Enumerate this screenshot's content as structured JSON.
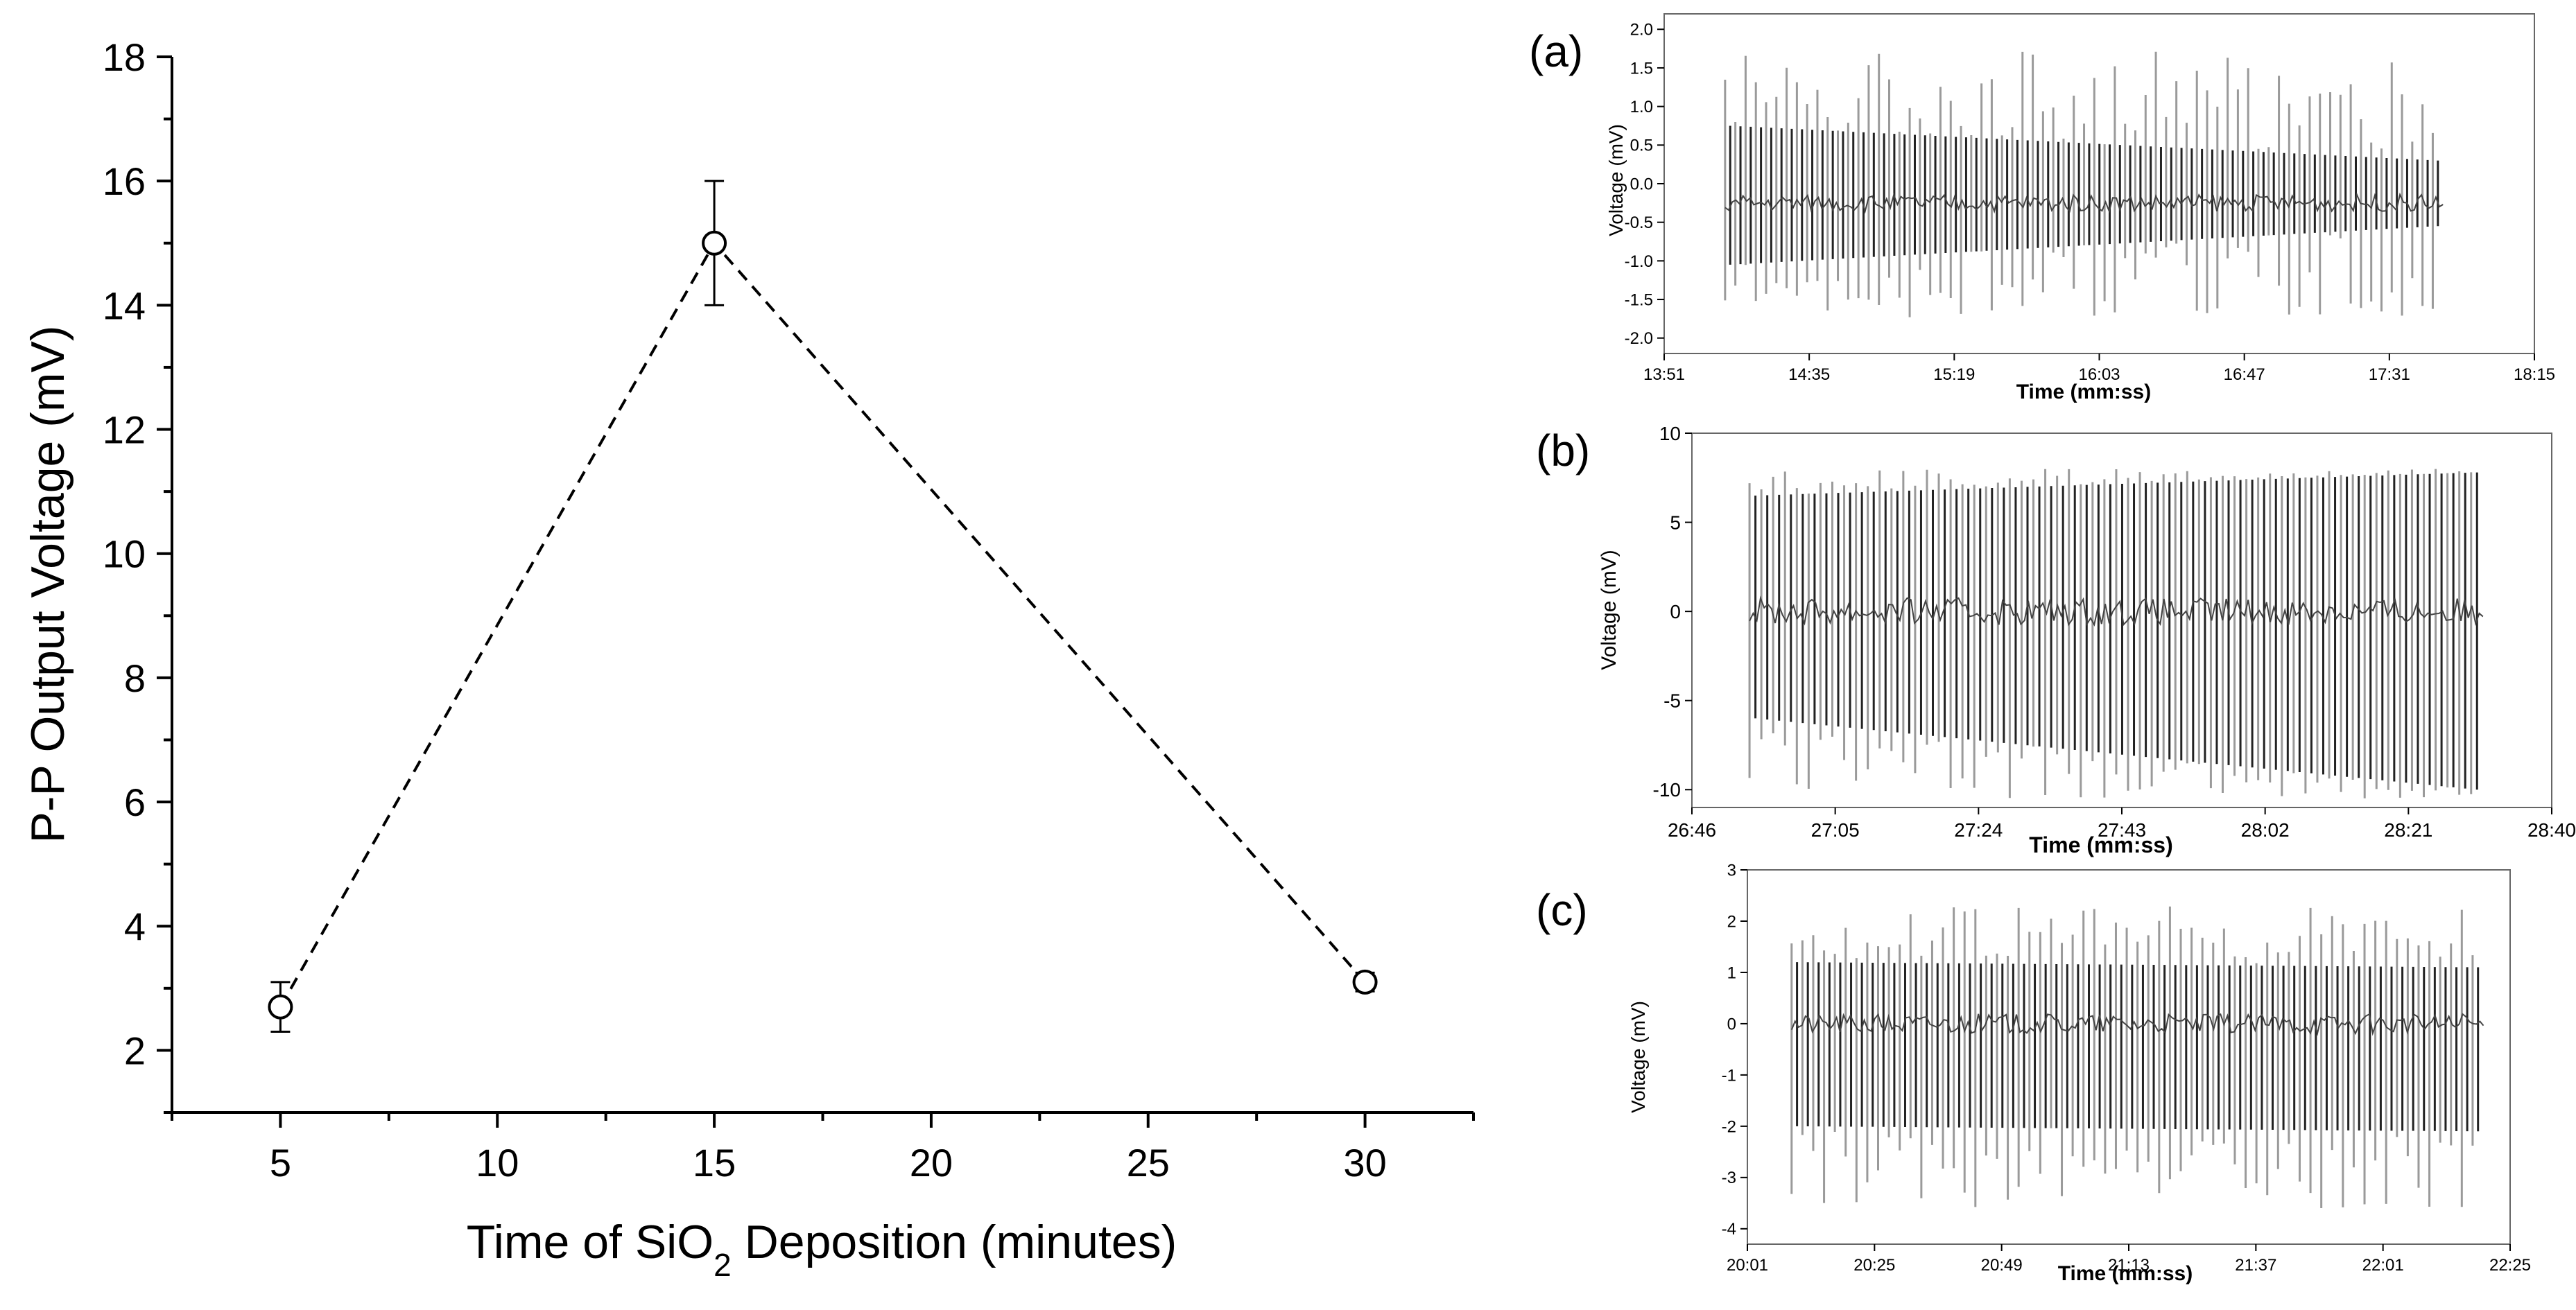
{
  "chart_data": [
    {
      "type": "scatter",
      "panel": "main",
      "title": "",
      "xlabel_prefix": "Time of SiO",
      "xlabel_sub": "2",
      "xlabel_suffix": " Deposition (minutes)",
      "ylabel": "P-P Output Voltage (mV)",
      "xlim": [
        2.5,
        32.5
      ],
      "ylim": [
        1,
        18
      ],
      "x_ticks": [
        5,
        10,
        15,
        20,
        25,
        30
      ],
      "x_tick_labels": [
        "5",
        "10",
        "15",
        "20",
        "25",
        "30"
      ],
      "y_ticks": [
        2,
        4,
        6,
        8,
        10,
        12,
        14,
        16,
        18
      ],
      "y_tick_labels": [
        "2",
        "4",
        "6",
        "8",
        "10",
        "12",
        "14",
        "16",
        "18"
      ],
      "line_style": "dashed",
      "points": [
        {
          "x": 5,
          "y": 2.7,
          "err": 0.4
        },
        {
          "x": 15,
          "y": 15.0,
          "err": 1.0
        },
        {
          "x": 30,
          "y": 3.1,
          "err": 0.15
        }
      ]
    },
    {
      "type": "line",
      "panel": "(a)",
      "panel_label": "(a)",
      "xlabel": "Time (mm:ss)",
      "ylabel": "Voltage (mV)",
      "ylim": [
        -2.2,
        2.2
      ],
      "y_ticks": [
        -2.0,
        -1.5,
        -1.0,
        -0.5,
        0.0,
        0.5,
        1.0,
        1.5,
        2.0
      ],
      "y_tick_labels": [
        "-2.0",
        "-1.5",
        "-1.0",
        "-0.5",
        "0.0",
        "0.5",
        "1.0",
        "1.5",
        "2.0"
      ],
      "x_tick_labels": [
        "13:51",
        "14:35",
        "15:19",
        "16:03",
        "16:47",
        "17:31",
        "18:15"
      ],
      "signal": {
        "start_frac": 0.07,
        "end_frac": 0.895,
        "cycles": 70,
        "upper_start": 0.75,
        "upper_end": 0.3,
        "lower_start": -1.05,
        "lower_end": -0.55,
        "spike_max": 1.75,
        "spike_min": -1.75,
        "mid": -0.25
      }
    },
    {
      "type": "line",
      "panel": "(b)",
      "panel_label": "(b)",
      "xlabel": "Time (mm:ss)",
      "ylabel": "Voltage (mV)",
      "ylim": [
        -11,
        10
      ],
      "y_ticks": [
        -10,
        -5,
        0,
        5,
        10
      ],
      "y_tick_labels": [
        "-10",
        "-5",
        "0",
        "5",
        "10"
      ],
      "x_tick_labels": [
        "26:46",
        "27:05",
        "27:24",
        "27:43",
        "28:02",
        "28:21",
        "28:40"
      ],
      "signal": {
        "start_frac": 0.067,
        "end_frac": 0.92,
        "cycles": 62,
        "upper_start": 6.5,
        "upper_end": 7.8,
        "lower_start": -6.0,
        "lower_end": -10.0,
        "spike_max": 8.0,
        "spike_min": -10.5,
        "mid": 0.0
      }
    },
    {
      "type": "line",
      "panel": "(c)",
      "panel_label": "(c)",
      "xlabel": "Time (mm:ss)",
      "ylabel": "Voltage (mV)",
      "ylim": [
        -4.3,
        3
      ],
      "y_ticks": [
        -4,
        -3,
        -2,
        -1,
        0,
        1,
        2,
        3
      ],
      "y_tick_labels": [
        "-4",
        "-3",
        "-2",
        "-1",
        "0",
        "1",
        "2",
        "3"
      ],
      "x_tick_labels": [
        "20:01",
        "20:25",
        "20:49",
        "21:13",
        "21:37",
        "22:01",
        "22:25"
      ],
      "signal": {
        "start_frac": 0.058,
        "end_frac": 0.965,
        "cycles": 64,
        "upper_start": 1.2,
        "upper_end": 1.1,
        "lower_start": -2.0,
        "lower_end": -2.1,
        "spike_max": 2.3,
        "spike_min": -3.6,
        "mid": 0.0
      }
    }
  ]
}
